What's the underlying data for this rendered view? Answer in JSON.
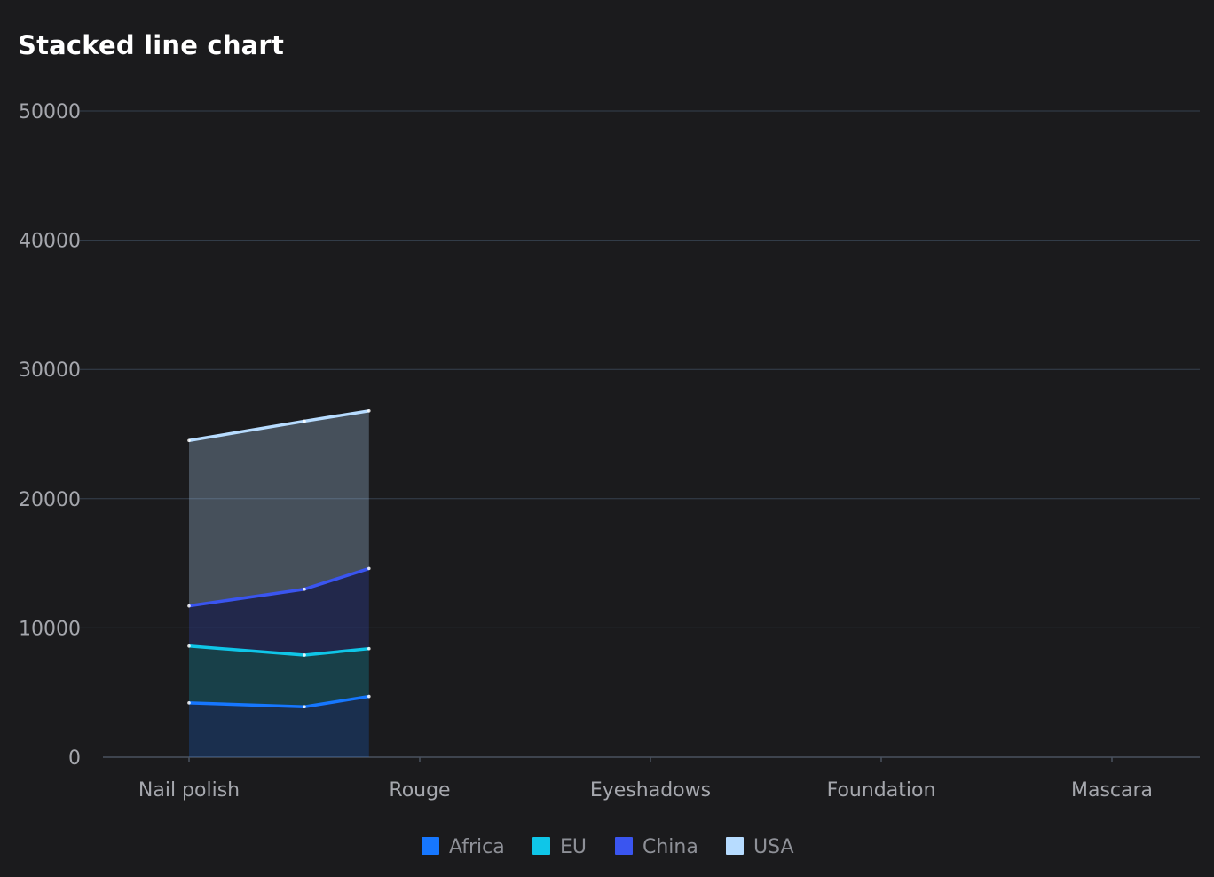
{
  "chart_data": {
    "type": "area",
    "title": "Stacked line chart",
    "categories": [
      "Nail polish",
      "Rouge",
      "Eyeshadows",
      "Foundation",
      "Mascara"
    ],
    "x": [
      0,
      0.5,
      0.78
    ],
    "ylim": [
      0,
      50000
    ],
    "yticks": [
      0,
      10000,
      20000,
      30000,
      40000,
      50000
    ],
    "stacked": true,
    "grid": true,
    "legend_position": "bottom",
    "series": [
      {
        "name": "Africa",
        "color": "#1677ff",
        "fill": "rgba(22,119,255,0.22)",
        "values": [
          4200,
          3900,
          4700
        ]
      },
      {
        "name": "EU",
        "color": "#0fc6e8",
        "fill": "rgba(15,198,232,0.22)",
        "values": [
          4400,
          4000,
          3700
        ]
      },
      {
        "name": "China",
        "color": "#3a55f0",
        "fill": "rgba(58,85,240,0.22)",
        "values": [
          3100,
          5100,
          6200
        ]
      },
      {
        "name": "USA",
        "color": "#b7dcff",
        "fill": "rgba(183,220,255,0.28)",
        "values": [
          12800,
          13000,
          12200
        ]
      }
    ]
  }
}
